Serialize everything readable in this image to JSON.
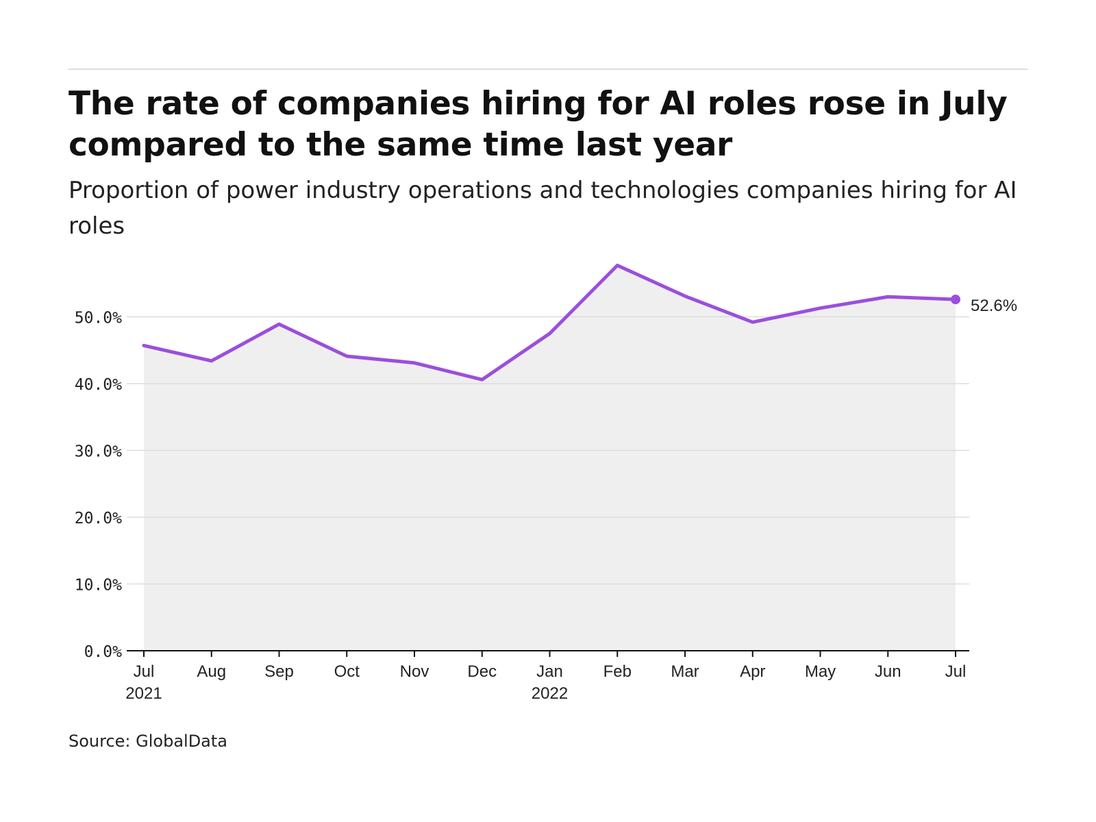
{
  "title": "The rate of companies hiring for AI roles rose in July compared to the same time last year",
  "subtitle": "Proportion of power industry operations and technologies companies hiring for AI roles",
  "source": "Source: GlobalData",
  "colors": {
    "line": "#9b4fdc",
    "area": "#efefef",
    "grid": "#dddddd",
    "axis": "#111111"
  },
  "chart_data": {
    "type": "area",
    "categories": [
      "Jul",
      "Aug",
      "Sep",
      "Oct",
      "Nov",
      "Dec",
      "Jan",
      "Feb",
      "Mar",
      "Apr",
      "May",
      "Jun",
      "Jul"
    ],
    "category_sublabels": [
      "2021",
      "",
      "",
      "",
      "",
      "",
      "2022",
      "",
      "",
      "",
      "",
      "",
      ""
    ],
    "series": [
      {
        "values": [
          45.7,
          43.4,
          48.9,
          44.1,
          43.1,
          40.6,
          47.5,
          57.7,
          53.1,
          49.2,
          51.3,
          53.0,
          52.6
        ]
      }
    ],
    "end_label": "52.6%",
    "y_ticks": [
      "0.0%",
      "10.0%",
      "20.0%",
      "30.0%",
      "40.0%",
      "50.0%"
    ],
    "y_tick_values": [
      0,
      10,
      20,
      30,
      40,
      50
    ],
    "ylim": [
      0,
      60
    ],
    "grid": true,
    "legend": "none"
  }
}
